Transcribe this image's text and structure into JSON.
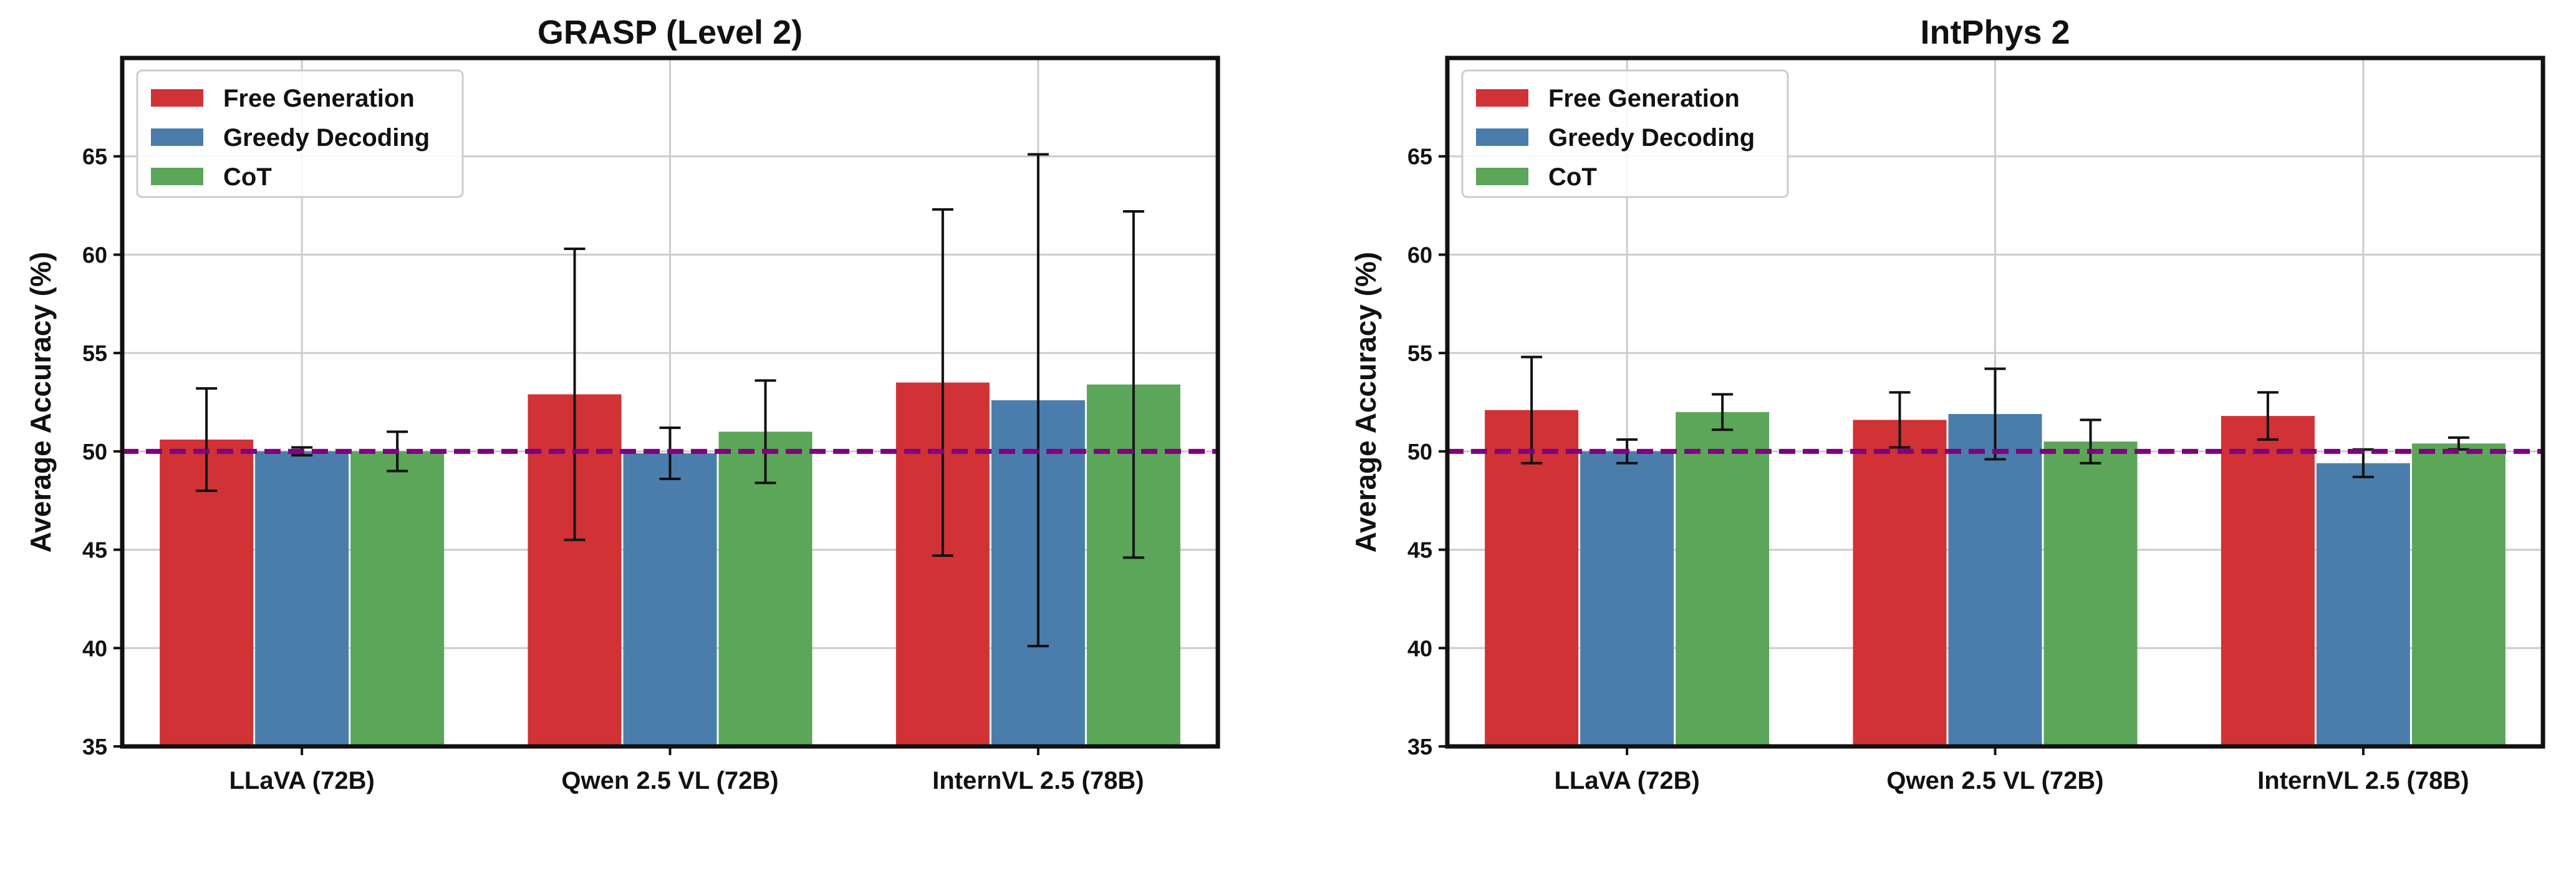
{
  "chart_data": [
    {
      "type": "bar",
      "title": "GRASP (Level 2)",
      "xlabel": "",
      "ylabel": "Average Accuracy (%)",
      "ylim": [
        35,
        70
      ],
      "yticks": [
        35,
        40,
        45,
        50,
        55,
        60,
        65
      ],
      "grid": true,
      "legend_position": "top-left",
      "reference_line": {
        "y": 50,
        "style": "dashed",
        "color": "#800080"
      },
      "categories": [
        "LLaVA (72B)",
        "Qwen 2.5 VL (72B)",
        "InternVL 2.5 (78B)"
      ],
      "series": [
        {
          "name": "Free Generation",
          "color": "#d03236",
          "values": [
            50.6,
            52.9,
            53.5
          ],
          "errors": [
            2.6,
            7.4,
            8.8
          ]
        },
        {
          "name": "Greedy Decoding",
          "color": "#4a7dab",
          "values": [
            50.0,
            49.9,
            52.6
          ],
          "errors": [
            0.2,
            1.3,
            12.5
          ]
        },
        {
          "name": "CoT",
          "color": "#5ca659",
          "values": [
            50.0,
            51.0,
            53.4
          ],
          "errors": [
            1.0,
            2.6,
            8.8
          ]
        }
      ]
    },
    {
      "type": "bar",
      "title": "IntPhys 2",
      "xlabel": "",
      "ylabel": "Average Accuracy (%)",
      "ylim": [
        35,
        70
      ],
      "yticks": [
        35,
        40,
        45,
        50,
        55,
        60,
        65
      ],
      "grid": true,
      "legend_position": "top-left",
      "reference_line": {
        "y": 50,
        "style": "dashed",
        "color": "#800080"
      },
      "categories": [
        "LLaVA (72B)",
        "Qwen 2.5 VL (72B)",
        "InternVL 2.5 (78B)"
      ],
      "series": [
        {
          "name": "Free Generation",
          "color": "#d03236",
          "values": [
            52.1,
            51.6,
            51.8
          ],
          "errors": [
            2.7,
            1.4,
            1.2
          ]
        },
        {
          "name": "Greedy Decoding",
          "color": "#4a7dab",
          "values": [
            50.0,
            51.9,
            49.4
          ],
          "errors": [
            0.6,
            2.3,
            0.7
          ]
        },
        {
          "name": "CoT",
          "color": "#5ca659",
          "values": [
            52.0,
            50.5,
            50.4
          ],
          "errors": [
            0.9,
            1.1,
            0.3
          ]
        }
      ]
    }
  ]
}
